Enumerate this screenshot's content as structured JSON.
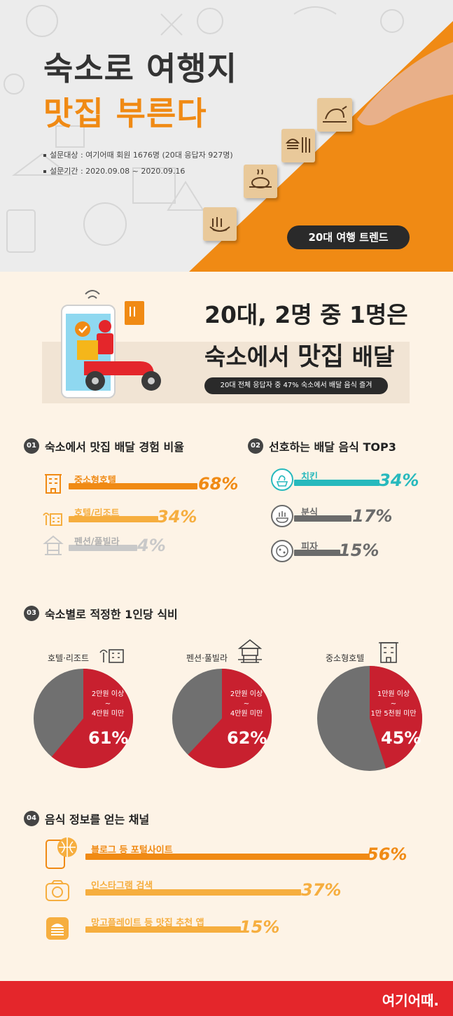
{
  "header": {
    "title_line1": "숙소로 여행지",
    "title_line2": "맛집 부른다",
    "survey_target": "설문대상 : 여기어때 회원 1676명 (20대 응답자 927명)",
    "survey_period": "설문기간 : 2020.09.08 ~ 2020.09.16",
    "badge": "20대 여행 트렌드"
  },
  "intro": {
    "headline_line1": "20대, 2명 중 1명은",
    "headline_line2_a": "숙소에서 ",
    "headline_line2_b": "맛집",
    "headline_line2_c": " 배달",
    "sub": "20대 전체 응답자 중 47% 숙소에서 배달 음식 즐겨"
  },
  "section1": {
    "num": "01",
    "title": "숙소에서 맛집 배달 경험 비율",
    "items": [
      {
        "label": "중소형호텔",
        "value": "68%",
        "icon": "building-icon"
      },
      {
        "label": "호텔/리조트",
        "value": "34%",
        "icon": "resort-icon"
      },
      {
        "label": "펜션/풀빌라",
        "value": "4%",
        "icon": "pension-icon"
      }
    ]
  },
  "section2": {
    "num": "02",
    "title": "선호하는 배달 음식 TOP3",
    "items": [
      {
        "label": "치킨",
        "value": "34%",
        "icon": "chicken-icon"
      },
      {
        "label": "분식",
        "value": "17%",
        "icon": "bunsik-icon"
      },
      {
        "label": "피자",
        "value": "15%",
        "icon": "pizza-icon"
      }
    ]
  },
  "section3": {
    "num": "03",
    "title": "숙소별로 적정한 1인당 식비",
    "pies": [
      {
        "label": "호텔·리조트",
        "range_top": "2만원 이상",
        "range_mid": "~",
        "range_bottom": "4만원 미만",
        "value": "61%",
        "fraction": 0.61
      },
      {
        "label": "펜션·풀빌라",
        "range_top": "2만원 이상",
        "range_mid": "~",
        "range_bottom": "4만원 미만",
        "value": "62%",
        "fraction": 0.62
      },
      {
        "label": "중소형호텔",
        "range_top": "1만원 이상",
        "range_mid": "~",
        "range_bottom": "1만 5천원 미만",
        "value": "45%",
        "fraction": 0.45
      }
    ]
  },
  "section4": {
    "num": "04",
    "title": "음식 정보를 얻는 채널",
    "items": [
      {
        "label": "블로그 등 포털사이트",
        "value": "56%",
        "icon": "phone-globe-icon"
      },
      {
        "label": "인스타그램 검색",
        "value": "37%",
        "icon": "camera-icon"
      },
      {
        "label": "망고플레이트 등 맛집 추천 앱",
        "value": "15%",
        "icon": "burger-icon"
      }
    ]
  },
  "footer": {
    "logo": "여기어때."
  },
  "colors": {
    "orange": "#f08a14",
    "light_orange": "#f6ae3f",
    "gray_bar": "#c9c9c9",
    "teal": "#27b9bd",
    "dark_gray": "#6b6b6b",
    "pie_red": "#c8202f",
    "pie_gray": "#707070",
    "footer_red": "#e4262b"
  }
}
